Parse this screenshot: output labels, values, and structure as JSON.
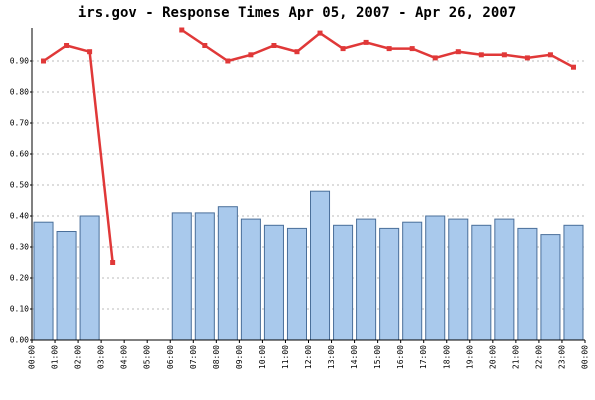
{
  "chart_data": {
    "type": "bar_line",
    "title": "irs.gov - Response Times Apr 05, 2007 - Apr 26, 2007",
    "xticks": [
      "00:00",
      "01:00",
      "02:00",
      "03:00",
      "04:00",
      "05:00",
      "06:00",
      "07:00",
      "08:00",
      "09:00",
      "10:00",
      "11:00",
      "12:00",
      "13:00",
      "14:00",
      "15:00",
      "16:00",
      "17:00",
      "18:00",
      "19:00",
      "20:00",
      "21:00",
      "22:00",
      "23:00",
      "00:00"
    ],
    "series": [
      {
        "type": "bar",
        "color": "#a9c9ec",
        "values": [
          0.38,
          0.35,
          0.4,
          null,
          null,
          null,
          0.41,
          0.41,
          0.43,
          0.39,
          0.37,
          0.36,
          0.48,
          0.37,
          0.39,
          0.36,
          0.38,
          0.4,
          0.39,
          0.37,
          0.39,
          0.36,
          0.34,
          0.37
        ]
      },
      {
        "type": "line",
        "color": "#e03838",
        "values": [
          0.9,
          0.95,
          0.93,
          0.25,
          null,
          null,
          1.0,
          0.95,
          0.9,
          0.92,
          0.95,
          0.93,
          0.99,
          0.94,
          0.96,
          0.94,
          0.94,
          0.91,
          0.93,
          0.92,
          0.92,
          0.91,
          0.92,
          0.88
        ]
      }
    ],
    "ylim": [
      0,
      1.0
    ],
    "yticks": [
      {
        "value": 0,
        "label": "0.00"
      },
      {
        "value": 0.1,
        "label": "0.10"
      },
      {
        "value": 0.2,
        "label": "0.20"
      },
      {
        "value": 0.3,
        "label": "0.30"
      },
      {
        "value": 0.4,
        "label": "0.40"
      },
      {
        "value": 0.5,
        "label": "0.50"
      },
      {
        "value": 0.6,
        "label": "0.60"
      },
      {
        "value": 0.7,
        "label": "0.70"
      },
      {
        "value": 0.8,
        "label": "0.80"
      },
      {
        "value": 0.9,
        "label": "0.90"
      }
    ],
    "grid": true
  }
}
